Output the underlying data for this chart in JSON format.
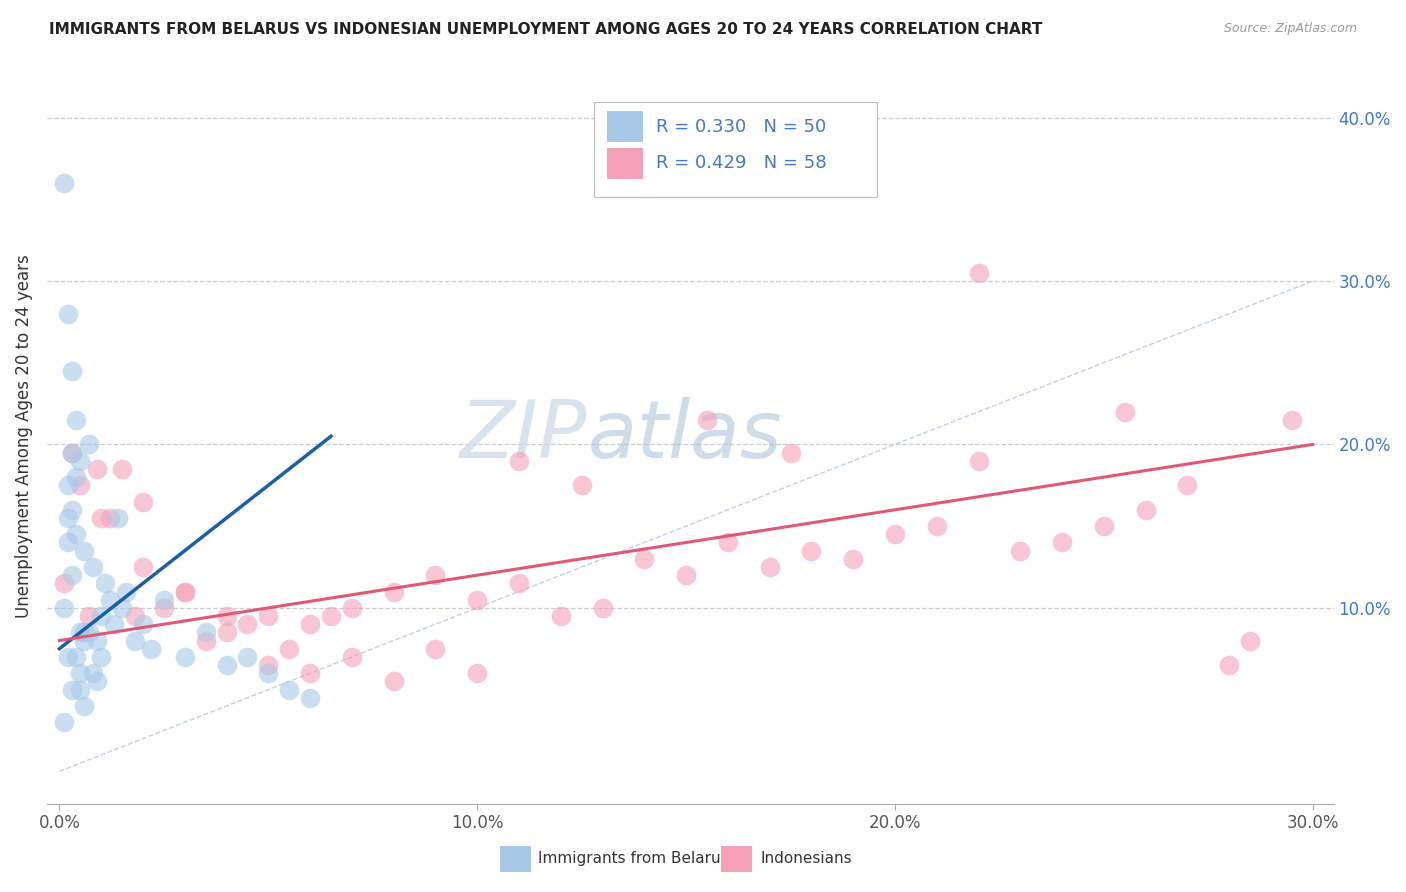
{
  "title": "IMMIGRANTS FROM BELARUS VS INDONESIAN UNEMPLOYMENT AMONG AGES 20 TO 24 YEARS CORRELATION CHART",
  "source": "Source: ZipAtlas.com",
  "xlabel_ticks": [
    "0.0%",
    "10.0%",
    "20.0%",
    "30.0%"
  ],
  "xlabel_tick_vals": [
    0.0,
    0.1,
    0.2,
    0.3
  ],
  "ylabel_ticks": [
    "10.0%",
    "20.0%",
    "30.0%",
    "40.0%"
  ],
  "ylabel_tick_vals": [
    0.1,
    0.2,
    0.3,
    0.4
  ],
  "xlim": [
    -0.003,
    0.305
  ],
  "ylim": [
    -0.02,
    0.43
  ],
  "ylabel": "Unemployment Among Ages 20 to 24 years",
  "legend_label1": "Immigrants from Belarus",
  "legend_label2": "Indonesians",
  "R1": 0.33,
  "N1": 50,
  "R2": 0.429,
  "N2": 58,
  "color_blue": "#a8c8e8",
  "color_pink": "#f4a0b8",
  "color_blue_line": "#1a5fa8",
  "color_pink_line": "#e05878",
  "color_diag": "#b8cce4",
  "blue_scatter_x": [
    0.001,
    0.001,
    0.001,
    0.002,
    0.002,
    0.002,
    0.002,
    0.003,
    0.003,
    0.003,
    0.003,
    0.004,
    0.004,
    0.004,
    0.005,
    0.005,
    0.005,
    0.006,
    0.006,
    0.006,
    0.007,
    0.007,
    0.008,
    0.008,
    0.009,
    0.009,
    0.01,
    0.01,
    0.011,
    0.012,
    0.013,
    0.014,
    0.015,
    0.016,
    0.018,
    0.02,
    0.022,
    0.025,
    0.03,
    0.035,
    0.04,
    0.045,
    0.05,
    0.055,
    0.06,
    0.002,
    0.003,
    0.004,
    0.005,
    0.006
  ],
  "blue_scatter_y": [
    0.36,
    0.03,
    0.1,
    0.28,
    0.175,
    0.155,
    0.07,
    0.245,
    0.195,
    0.16,
    0.05,
    0.215,
    0.18,
    0.07,
    0.19,
    0.085,
    0.05,
    0.135,
    0.085,
    0.04,
    0.2,
    0.085,
    0.125,
    0.06,
    0.08,
    0.055,
    0.095,
    0.07,
    0.115,
    0.105,
    0.09,
    0.155,
    0.1,
    0.11,
    0.08,
    0.09,
    0.075,
    0.105,
    0.07,
    0.085,
    0.065,
    0.07,
    0.06,
    0.05,
    0.045,
    0.14,
    0.12,
    0.145,
    0.06,
    0.08
  ],
  "pink_scatter_x": [
    0.001,
    0.003,
    0.005,
    0.007,
    0.009,
    0.012,
    0.015,
    0.018,
    0.02,
    0.025,
    0.03,
    0.035,
    0.04,
    0.045,
    0.05,
    0.055,
    0.06,
    0.065,
    0.07,
    0.08,
    0.09,
    0.1,
    0.11,
    0.12,
    0.13,
    0.14,
    0.15,
    0.16,
    0.17,
    0.18,
    0.19,
    0.2,
    0.21,
    0.22,
    0.23,
    0.24,
    0.25,
    0.26,
    0.27,
    0.28,
    0.01,
    0.02,
    0.03,
    0.04,
    0.05,
    0.06,
    0.07,
    0.08,
    0.09,
    0.1,
    0.11,
    0.125,
    0.175,
    0.22,
    0.155,
    0.255,
    0.285,
    0.295
  ],
  "pink_scatter_y": [
    0.115,
    0.195,
    0.175,
    0.095,
    0.185,
    0.155,
    0.185,
    0.095,
    0.125,
    0.1,
    0.11,
    0.08,
    0.085,
    0.09,
    0.065,
    0.075,
    0.09,
    0.095,
    0.1,
    0.11,
    0.12,
    0.105,
    0.115,
    0.095,
    0.1,
    0.13,
    0.12,
    0.14,
    0.125,
    0.135,
    0.13,
    0.145,
    0.15,
    0.305,
    0.135,
    0.14,
    0.15,
    0.16,
    0.175,
    0.065,
    0.155,
    0.165,
    0.11,
    0.095,
    0.095,
    0.06,
    0.07,
    0.055,
    0.075,
    0.06,
    0.19,
    0.175,
    0.195,
    0.19,
    0.215,
    0.22,
    0.08,
    0.215
  ],
  "blue_line_x": [
    0.0,
    0.065
  ],
  "blue_line_y": [
    0.075,
    0.205
  ],
  "pink_line_x": [
    0.0,
    0.3
  ],
  "pink_line_y": [
    0.08,
    0.2
  ],
  "diag_line_x": [
    0.0,
    0.3
  ],
  "diag_line_y": [
    0.0,
    0.3
  ]
}
